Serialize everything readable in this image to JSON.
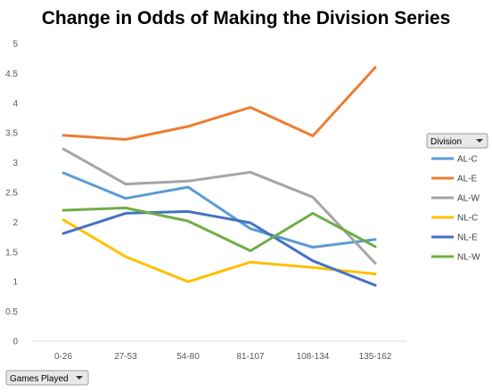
{
  "chart_data": {
    "type": "line",
    "title": "Change in Odds of Making the Division Series",
    "categories": [
      "0-26",
      "27-53",
      "54-80",
      "81-107",
      "108-134",
      "135-162"
    ],
    "ylim": [
      0,
      5
    ],
    "yticks": [
      "0",
      "0.5",
      "1",
      "1.5",
      "2",
      "2.5",
      "3",
      "3.5",
      "4",
      "4.5",
      "5"
    ],
    "grid": false,
    "legend_position": "right",
    "legend_title": "Division",
    "axis_field_button": "Games Played",
    "series": [
      {
        "name": "AL-C",
        "color": "#5b9bd5",
        "values": [
          2.83,
          2.4,
          2.59,
          1.89,
          1.58,
          1.71
        ]
      },
      {
        "name": "AL-E",
        "color": "#ed7d31",
        "values": [
          3.46,
          3.39,
          3.61,
          3.93,
          3.45,
          4.6
        ]
      },
      {
        "name": "AL-W",
        "color": "#a5a5a5",
        "values": [
          3.23,
          2.64,
          2.69,
          2.84,
          2.42,
          1.31
        ]
      },
      {
        "name": "NL-C",
        "color": "#ffc000",
        "values": [
          2.04,
          1.42,
          1.0,
          1.33,
          1.24,
          1.13
        ]
      },
      {
        "name": "NL-E",
        "color": "#4472c4",
        "values": [
          1.81,
          2.15,
          2.18,
          1.99,
          1.35,
          0.94
        ]
      },
      {
        "name": "NL-W",
        "color": "#70ad47",
        "values": [
          2.2,
          2.24,
          2.02,
          1.52,
          2.15,
          1.59
        ]
      }
    ]
  }
}
